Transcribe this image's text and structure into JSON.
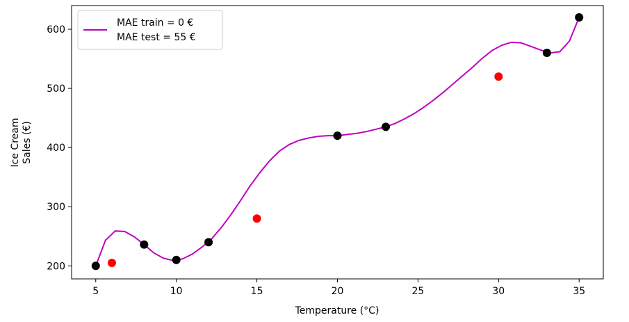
{
  "chart_data": {
    "type": "line",
    "title": "",
    "xlabel": "Temperature (°C)",
    "ylabel_lines": [
      "Ice Cream",
      "Sales (€)"
    ],
    "xlim": [
      3.5,
      36.5
    ],
    "ylim": [
      178,
      640
    ],
    "xticks": [
      5,
      10,
      15,
      20,
      25,
      30,
      35
    ],
    "yticks": [
      200,
      300,
      400,
      500,
      600
    ],
    "grid": false,
    "legend": {
      "placement": "top-left",
      "entries": [
        "MAE train = 0 €",
        "MAE test = 55 €"
      ]
    },
    "colors": {
      "fit_line": "#bf00bf",
      "train_points": "#000000",
      "test_points": "#ff0000"
    },
    "series": [
      {
        "kind": "line",
        "name": "MAE train = 0 €\nMAE test = 55 €",
        "x": [
          5,
          5.6,
          6.2,
          6.8,
          7.4,
          8,
          8.6,
          9.2,
          9.8,
          10.4,
          11,
          11.6,
          12.2,
          12.8,
          13.4,
          14,
          14.6,
          15.2,
          15.8,
          16.4,
          17,
          17.6,
          18.2,
          18.8,
          19.4,
          20,
          20.6,
          21.2,
          21.8,
          22.4,
          23,
          23.6,
          24.2,
          24.8,
          25.4,
          26,
          26.6,
          27.2,
          27.8,
          28.4,
          29,
          29.6,
          30.2,
          30.8,
          31.4,
          32,
          32.6,
          33.2,
          33.8,
          34.4,
          35
        ],
        "y": [
          200,
          243,
          259,
          258,
          249,
          236,
          222,
          213,
          209,
          212,
          220,
          232,
          246,
          265,
          287,
          311,
          336,
          358,
          378,
          394,
          405,
          412,
          416,
          419,
          420,
          420,
          422,
          424,
          427,
          431,
          435,
          441,
          449,
          458,
          469,
          481,
          494,
          508,
          522,
          536,
          551,
          564,
          573,
          578,
          577,
          571,
          565,
          560,
          562,
          580,
          620
        ]
      },
      {
        "kind": "scatter",
        "name": "train",
        "x": [
          5,
          8,
          10,
          12,
          20,
          23,
          33,
          35
        ],
        "y": [
          200,
          236,
          210,
          240,
          420,
          435,
          560,
          620
        ]
      },
      {
        "kind": "scatter",
        "name": "test",
        "x": [
          6,
          15,
          30
        ],
        "y": [
          205,
          280,
          520
        ]
      }
    ]
  }
}
